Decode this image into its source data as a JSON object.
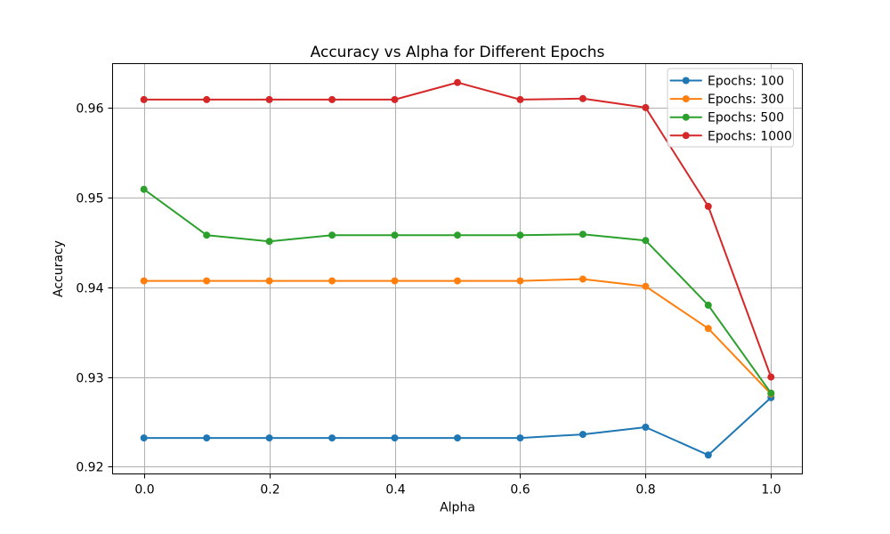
{
  "figure": {
    "background": "#ffffff"
  },
  "chart_data": {
    "type": "line",
    "title": "Accuracy vs Alpha for Different Epochs",
    "xlabel": "Alpha",
    "ylabel": "Accuracy",
    "x": [
      0.0,
      0.1,
      0.2,
      0.3,
      0.4,
      0.5,
      0.6,
      0.7,
      0.8,
      0.9,
      1.0
    ],
    "series": [
      {
        "name": "Epochs: 100",
        "color": "#1f77b4",
        "values": [
          0.9232,
          0.9232,
          0.9232,
          0.9232,
          0.9232,
          0.9232,
          0.9232,
          0.9236,
          0.9244,
          0.9213,
          0.9277
        ]
      },
      {
        "name": "Epochs: 300",
        "color": "#ff7f0e",
        "values": [
          0.9407,
          0.9407,
          0.9407,
          0.9407,
          0.9407,
          0.9407,
          0.9407,
          0.9409,
          0.9401,
          0.9354,
          0.9281
        ]
      },
      {
        "name": "Epochs: 500",
        "color": "#2ca02c",
        "values": [
          0.9509,
          0.9458,
          0.9451,
          0.9458,
          0.9458,
          0.9458,
          0.9458,
          0.9459,
          0.9452,
          0.938,
          0.9282
        ]
      },
      {
        "name": "Epochs: 1000",
        "color": "#d62728",
        "values": [
          0.9609,
          0.9609,
          0.9609,
          0.9609,
          0.9609,
          0.9628,
          0.9609,
          0.961,
          0.96,
          0.949,
          0.93
        ]
      }
    ],
    "xlim": [
      -0.05,
      1.05
    ],
    "ylim": [
      0.9192,
      0.9649
    ],
    "xticks": [
      0.0,
      0.2,
      0.4,
      0.6,
      0.8,
      1.0
    ],
    "xtick_labels": [
      "0.0",
      "0.2",
      "0.4",
      "0.6",
      "0.8",
      "1.0"
    ],
    "yticks": [
      0.92,
      0.93,
      0.94,
      0.95,
      0.96
    ],
    "ytick_labels": [
      "0.92",
      "0.93",
      "0.94",
      "0.95",
      "0.96"
    ],
    "grid": true,
    "legend_position": "upper right",
    "colors": {
      "grid": "#b0b0b0",
      "spine": "#000000",
      "text": "#000000",
      "legend_border": "#cccccc",
      "legend_bg": "#ffffff"
    }
  }
}
